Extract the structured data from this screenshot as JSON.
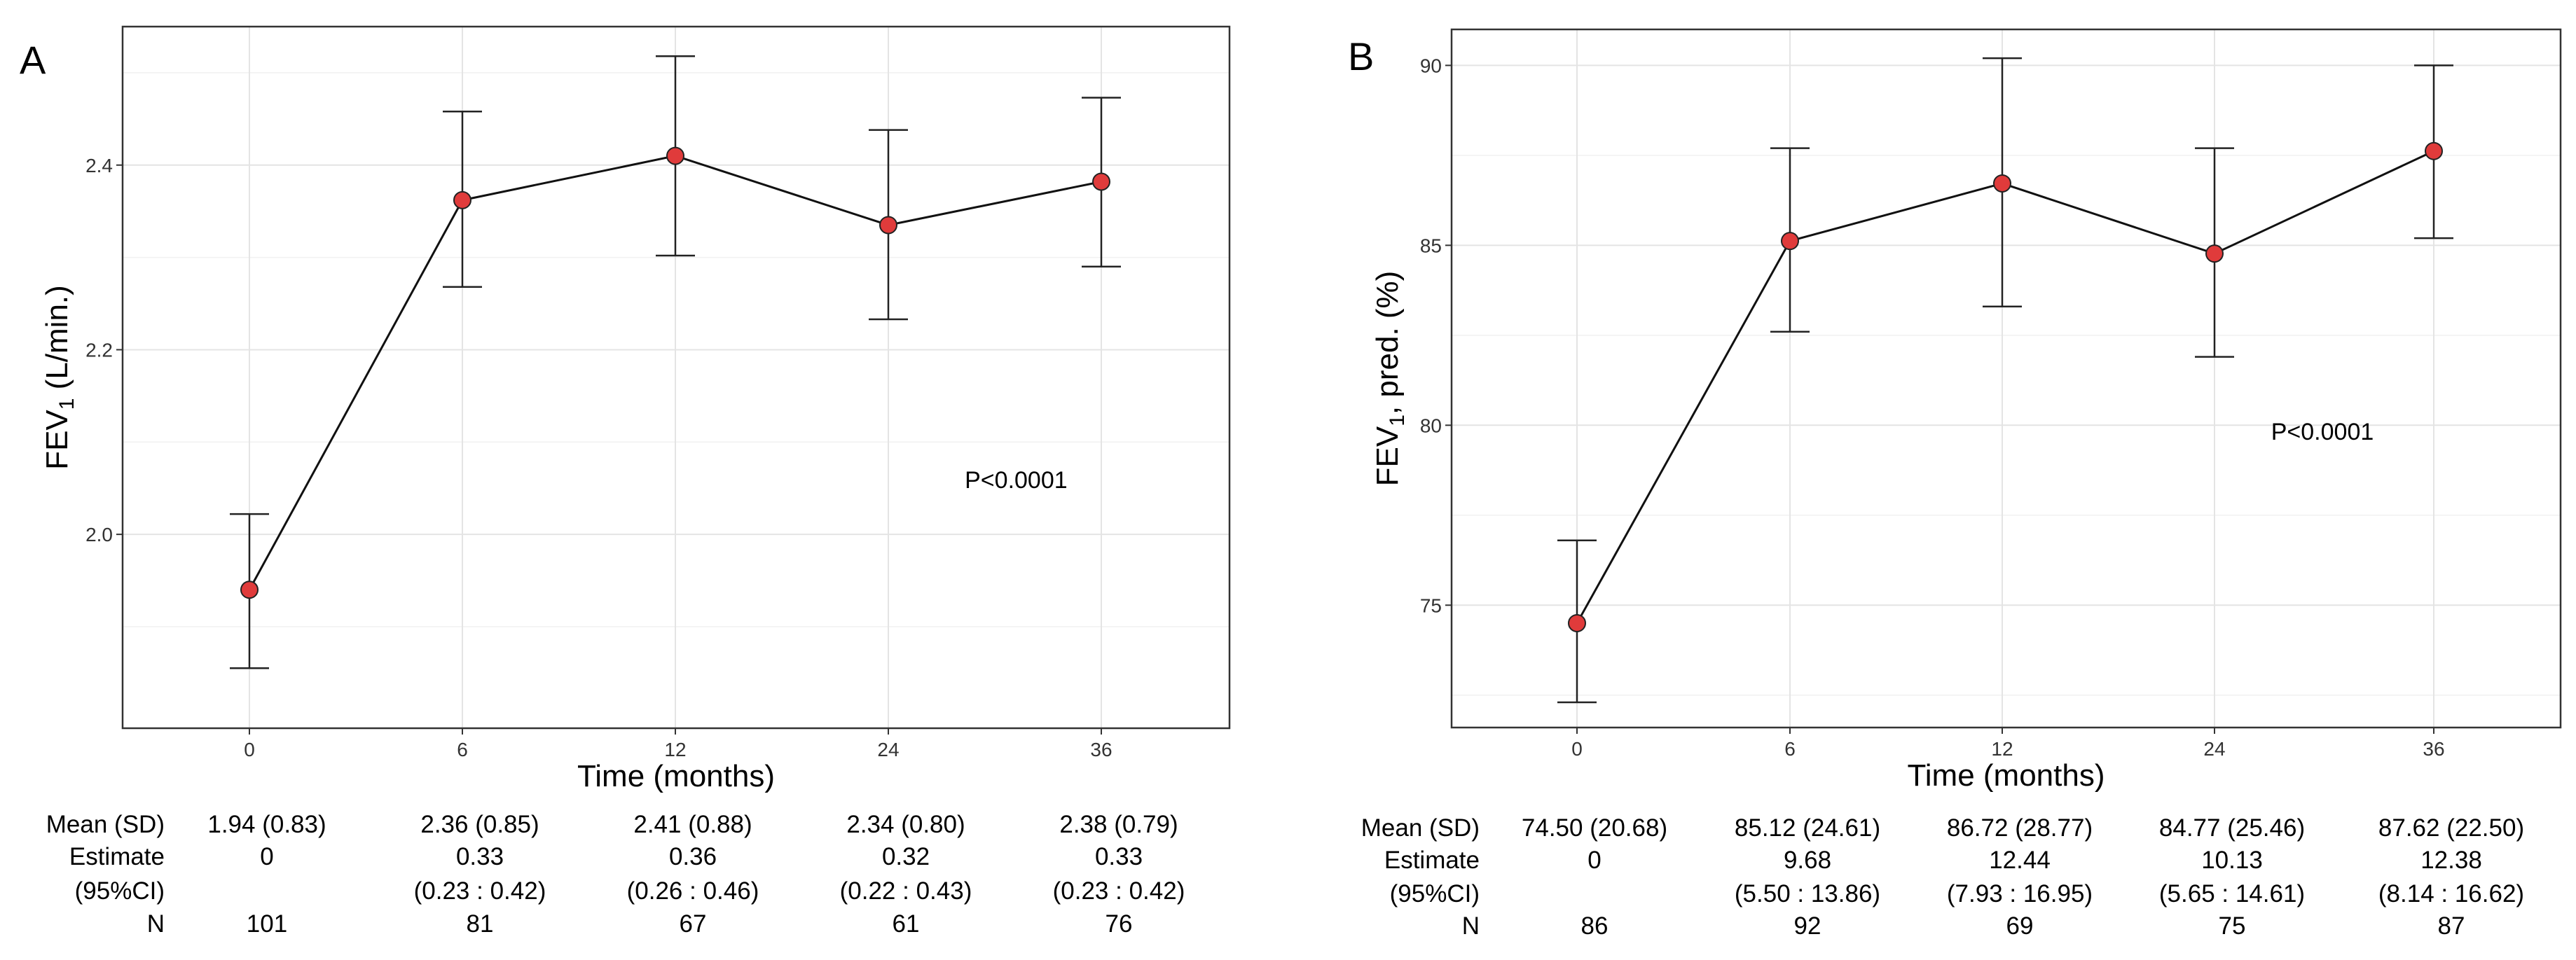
{
  "chart_data": [
    {
      "panel": "A",
      "type": "line",
      "xlabel": "Time (months)",
      "ylabel_main": "FEV",
      "ylabel_sub": "1",
      "ylabel_rest": " (L/min.)",
      "categories": [
        "0",
        "6",
        "12",
        "24",
        "36"
      ],
      "values": [
        1.94,
        2.362,
        2.41,
        2.335,
        2.382
      ],
      "ci_low": [
        1.855,
        2.268,
        2.302,
        2.233,
        2.29
      ],
      "ci_high": [
        2.022,
        2.458,
        2.518,
        2.438,
        2.473
      ],
      "ylim": [
        1.79,
        2.55
      ],
      "yticks": [
        2.0,
        2.2,
        2.4
      ],
      "ytick_labels": [
        "2.0",
        "2.2",
        "2.4"
      ],
      "annotation": {
        "text": "P<0.0001",
        "x": 3.6,
        "y": 2.05
      },
      "marker_color": "#e03b3b",
      "table": {
        "row_labels": [
          "Mean (SD)",
          "Estimate",
          "(95%CI)",
          "N"
        ],
        "mean_sd": [
          "1.94 (0.83)",
          "2.36 (0.85)",
          "2.41 (0.88)",
          "2.34 (0.80)",
          "2.38 (0.79)"
        ],
        "estimate": [
          "0",
          "0.33",
          "0.36",
          "0.32",
          "0.33"
        ],
        "ci": [
          "",
          "(0.23 : 0.42)",
          "(0.26 : 0.46)",
          "(0.22 : 0.43)",
          "(0.23 : 0.42)"
        ],
        "n": [
          "101",
          "81",
          "67",
          "61",
          "76"
        ]
      }
    },
    {
      "panel": "B",
      "type": "line",
      "xlabel": "Time (months)",
      "ylabel_main": "FEV",
      "ylabel_sub": "1",
      "ylabel_rest": ", pred. (%)",
      "categories": [
        "0",
        "6",
        "12",
        "24",
        "36"
      ],
      "values": [
        74.5,
        85.12,
        86.72,
        84.77,
        87.62
      ],
      "ci_low": [
        72.3,
        82.6,
        83.3,
        81.9,
        85.2
      ],
      "ci_high": [
        76.8,
        87.7,
        90.2,
        87.7,
        90.0
      ],
      "ylim": [
        71.6,
        91.0
      ],
      "yticks": [
        75,
        80,
        85,
        90
      ],
      "ytick_labels": [
        "75",
        "80",
        "85",
        "90"
      ],
      "annotation": {
        "text": "P<0.0001",
        "x": 3.5,
        "y": 79.6
      },
      "marker_color": "#e03b3b",
      "table": {
        "row_labels": [
          "Mean (SD)",
          "Estimate",
          "(95%CI)",
          "N"
        ],
        "mean_sd": [
          "74.50 (20.68)",
          "85.12 (24.61)",
          "86.72 (28.77)",
          "84.77 (25.46)",
          "87.62 (22.50)"
        ],
        "estimate": [
          "0",
          "9.68",
          "12.44",
          "10.13",
          "12.38"
        ],
        "ci": [
          "",
          "(5.50 : 13.86)",
          "(7.93 : 16.95)",
          "(5.65 : 14.61)",
          "(8.14 : 16.62)"
        ],
        "n": [
          "86",
          "92",
          "69",
          "75",
          "87"
        ]
      }
    }
  ]
}
